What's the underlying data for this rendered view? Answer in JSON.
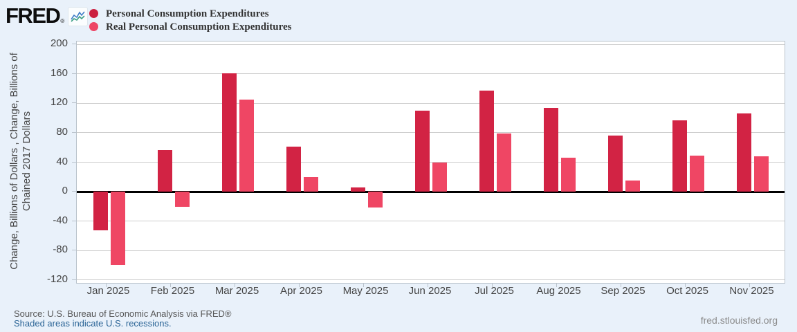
{
  "header": {
    "logo_text": "FRED",
    "logo_reg": "®",
    "sparkline_icon": "fred-sparkline-icon"
  },
  "legend": [
    {
      "label": "Personal Consumption Expenditures",
      "color": "#cb2040"
    },
    {
      "label": "Real Personal Consumption Expenditures",
      "color": "#ee4565"
    }
  ],
  "chart_data": {
    "type": "bar",
    "title": "",
    "categories": [
      "Jan 2025",
      "Feb 2025",
      "Mar 2025",
      "Apr 2025",
      "May 2025",
      "Jun 2025",
      "Jul 2025",
      "Aug 2025",
      "Sep 2025",
      "Oct 2025",
      "Nov 2025"
    ],
    "series": [
      {
        "name": "Personal Consumption Expenditures",
        "color": "#d22344",
        "values": [
          -53,
          56,
          161,
          61,
          6,
          110,
          137,
          114,
          76,
          97,
          106
        ]
      },
      {
        "name": "Real Personal Consumption Expenditures",
        "color": "#ef4664",
        "values": [
          -100,
          -21,
          125,
          20,
          -22,
          40,
          79,
          46,
          15,
          49,
          48
        ]
      }
    ],
    "ylabel_line1": "Change, Billions of Dollars , Change, Billions of",
    "ylabel_line2": "Chained 2017 Dollars",
    "yticks": [
      200,
      160,
      120,
      80,
      40,
      0,
      -40,
      -80,
      -120
    ],
    "ylim": [
      -124,
      204
    ],
    "units": "Billions of Dollars / Billions of Chained 2017 Dollars",
    "grid": true,
    "legend_position": "top",
    "zero_line_color": "#000000",
    "gridline_color": "#cccccc",
    "plot_background": "#ffffff",
    "page_background": "#e9f1fa"
  },
  "footer": {
    "source": "Source: U.S. Bureau of Economic Analysis via FRED®",
    "recession_note": "Shaded areas indicate U.S. recessions.",
    "site": "fred.stlouisfed.org"
  }
}
